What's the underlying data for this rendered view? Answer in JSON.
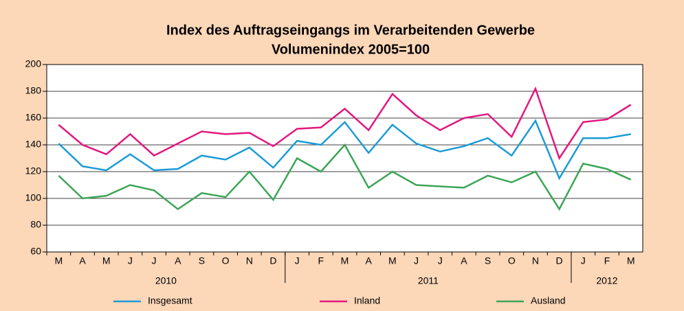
{
  "chart_data": {
    "type": "line",
    "title": "Index des Auftragseingangs im Verarbeitenden Gewerbe",
    "subtitle": "Volumenindex 2005=100",
    "categories": [
      "M",
      "A",
      "M",
      "J",
      "J",
      "A",
      "S",
      "O",
      "N",
      "D",
      "J",
      "F",
      "M",
      "A",
      "M",
      "J",
      "J",
      "A",
      "S",
      "O",
      "N",
      "D",
      "J",
      "F",
      "M"
    ],
    "year_groups": [
      {
        "label": "2010",
        "start": 0,
        "end": 9
      },
      {
        "label": "2011",
        "start": 10,
        "end": 21
      },
      {
        "label": "2012",
        "start": 22,
        "end": 24
      }
    ],
    "series": [
      {
        "name": "Insgesamt",
        "color": "#1b9bd7",
        "values": [
          141,
          124,
          121,
          133,
          121,
          122,
          132,
          129,
          138,
          123,
          143,
          140,
          157,
          134,
          155,
          141,
          135,
          139,
          145,
          132,
          158,
          115,
          145,
          145,
          148
        ]
      },
      {
        "name": "Inland",
        "color": "#e2187f",
        "values": [
          155,
          140,
          133,
          148,
          132,
          141,
          150,
          148,
          149,
          139,
          152,
          153,
          167,
          151,
          178,
          162,
          151,
          160,
          163,
          146,
          182,
          130,
          157,
          159,
          170
        ]
      },
      {
        "name": "Ausland",
        "color": "#3ba556",
        "values": [
          117,
          100,
          102,
          110,
          106,
          92,
          104,
          101,
          120,
          99,
          130,
          120,
          140,
          108,
          120,
          110,
          109,
          108,
          117,
          112,
          120,
          92,
          126,
          122,
          114
        ]
      }
    ],
    "ylim": [
      60,
      200
    ],
    "yticks": [
      60,
      80,
      100,
      120,
      140,
      160,
      180,
      200
    ],
    "grid": true
  }
}
